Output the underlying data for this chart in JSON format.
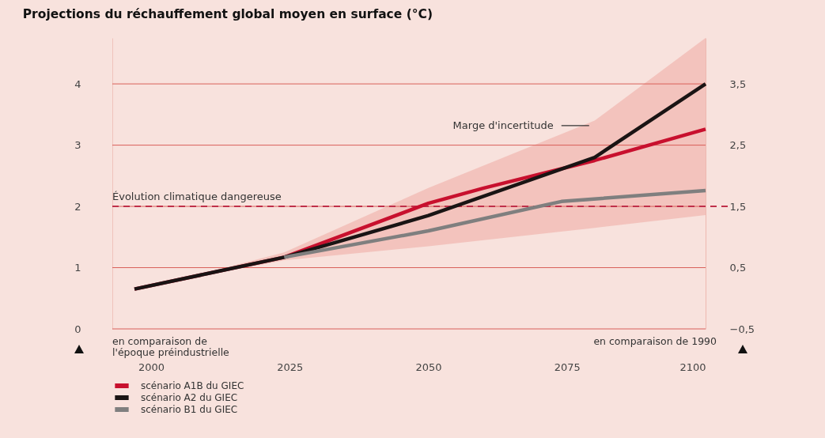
{
  "chart_data": {
    "type": "line",
    "title": "Projections du réchauffement global moyen en surface (°C)",
    "xlim": [
      1993,
      2100
    ],
    "xticks": [
      2000,
      2025,
      2050,
      2075,
      2100
    ],
    "ylim": [
      0,
      4.75
    ],
    "yticks": [
      0,
      1,
      2,
      3,
      4
    ],
    "y2lim": [
      -0.5,
      4.25
    ],
    "y2ticks": [
      {
        "value": -0.5,
        "label": "−0,5"
      },
      {
        "value": 0.5,
        "label": "0,5"
      },
      {
        "value": 1.5,
        "label": "1,5"
      },
      {
        "value": 2.5,
        "label": "2,5"
      },
      {
        "value": 3.5,
        "label": "3,5"
      }
    ],
    "grid": "y",
    "legend": "bottom left",
    "line_style": "solid",
    "series": [
      {
        "name": "scénario A1B du GIEC",
        "color": "#c8102e",
        "x": [
          1997,
          2024,
          2050,
          2060,
          2080,
          2100
        ],
        "values": [
          0.65,
          1.17,
          2.05,
          2.3,
          2.75,
          3.26
        ]
      },
      {
        "name": "scénario A2 du GIEC",
        "color": "#1a1414",
        "x": [
          1997,
          2010,
          2024,
          2050,
          2080,
          2100
        ],
        "values": [
          0.65,
          0.9,
          1.17,
          1.85,
          2.8,
          4.0
        ],
        "lower": [
          0.65,
          0.88,
          1.12,
          1.35,
          1.65,
          1.86
        ],
        "upper": [
          0.65,
          0.92,
          1.25,
          2.3,
          3.4,
          4.75
        ]
      },
      {
        "name": "scénario B1 du GIEC",
        "color": "#7f7f7f",
        "x": [
          2024,
          2050,
          2074,
          2100
        ],
        "values": [
          1.17,
          1.6,
          2.08,
          2.26
        ]
      }
    ],
    "ref_lines": [
      {
        "axis": "y",
        "value": 2,
        "label": "Évolution climatique dangereuse",
        "color": "#c0304a",
        "line_style": "dashed"
      }
    ],
    "annotations": [
      {
        "text": "Marge d'incertitude",
        "x": 2079,
        "y": 3.32
      },
      "en comparaison de\nl'époque préindustrielle",
      "en comparaison de 1990"
    ]
  }
}
